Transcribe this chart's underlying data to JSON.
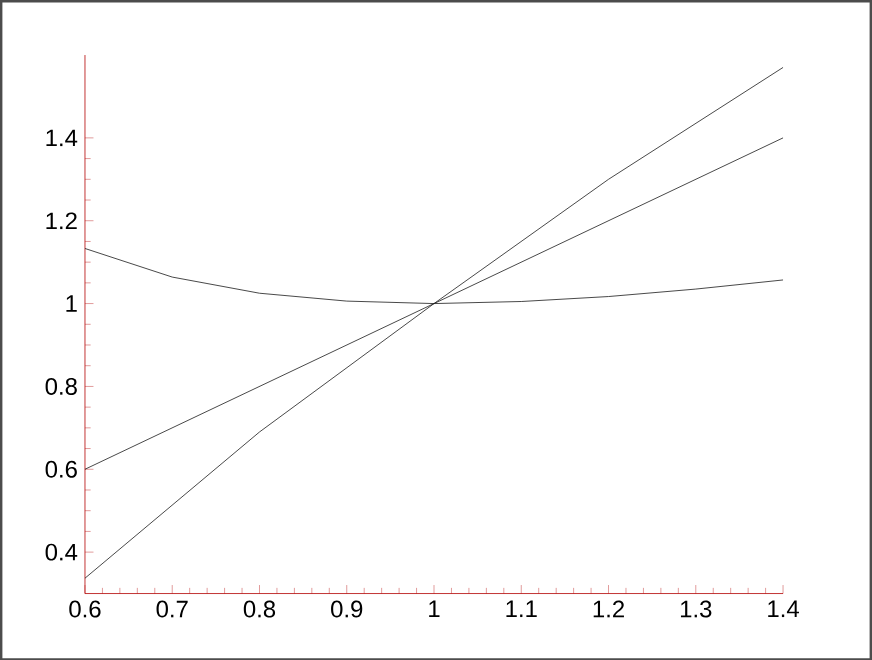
{
  "chart_data": {
    "type": "line",
    "xlim": [
      0.6,
      1.4
    ],
    "ylim": [
      0.3,
      1.6
    ],
    "xticks": [
      0.6,
      0.7,
      0.8,
      0.9,
      1,
      1.1,
      1.2,
      1.3,
      1.4
    ],
    "yticks": [
      0.4,
      0.6,
      0.8,
      1,
      1.2,
      1.4
    ],
    "series": [
      {
        "color": "#1a1a1a",
        "x": [
          0.6,
          0.8,
          1,
          1.2,
          1.4
        ],
        "values": [
          0.337,
          0.69,
          1,
          1.3,
          1.57
        ]
      },
      {
        "color": "#1a1a1a",
        "x": [
          0.6,
          1,
          1.4
        ],
        "values": [
          0.6,
          1,
          1.4
        ]
      },
      {
        "color": "#1a1a1a",
        "x": [
          0.6,
          0.7,
          0.8,
          0.9,
          1,
          1.1,
          1.2,
          1.3,
          1.4
        ],
        "values": [
          1.133,
          1.064,
          1.025,
          1.006,
          1,
          1.005,
          1.017,
          1.035,
          1.057
        ]
      }
    ],
    "grid": false,
    "marker": "none",
    "line_style": "solid"
  }
}
